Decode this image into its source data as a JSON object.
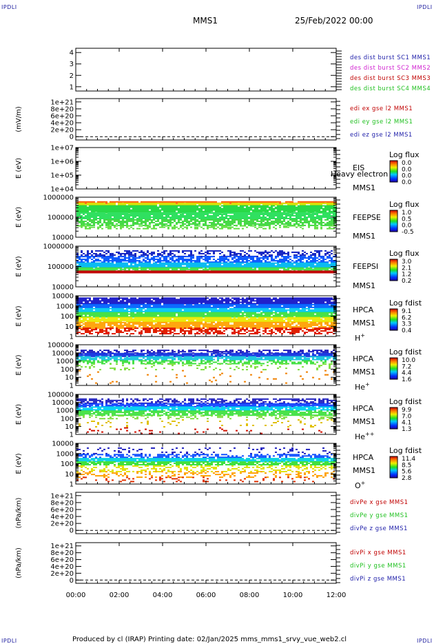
{
  "header": {
    "spacecraft": "MMS1",
    "datetime": "25/Feb/2022 00:00",
    "corner_mark": "IPDLI"
  },
  "footer": {
    "text": "Produced by cl (IRAP)   Printing date: 02/Jan/2025   mms_mms1_srvy_vue_web2.cl"
  },
  "colors": {
    "blue": "#1c1ca8",
    "magenta": "#d020d0",
    "red": "#c00000",
    "green": "#20c020"
  },
  "chart_data": [
    {
      "type": "line",
      "id": "burst",
      "ylabel": "",
      "yticks": [
        "4",
        "3",
        "2",
        "1"
      ],
      "legend": [
        {
          "text": "des dist burst SC1 MMS1",
          "color": "blue"
        },
        {
          "text": "des dist burst SC2 MMS2",
          "color": "magenta"
        },
        {
          "text": "des dist burst SC3 MMS3",
          "color": "red"
        },
        {
          "text": "des dist burst SC4 MMS4",
          "color": "green"
        }
      ]
    },
    {
      "type": "line",
      "id": "edi",
      "ylabel": "(mV/m)",
      "yticks": [
        "1e+21",
        "8e+20",
        "6e+20",
        "4e+20",
        "2e+20",
        "0"
      ],
      "zero_line": true,
      "legend": [
        {
          "text": "edi ex gse l2 MMS1",
          "color": "red"
        },
        {
          "text": "edi ey gse l2 MMS1",
          "color": "green"
        },
        {
          "text": "edi ez gse l2 MMS1",
          "color": "blue"
        }
      ]
    },
    {
      "type": "heatmap",
      "id": "eis",
      "ylabel": "E (eV)",
      "yticks": [
        "1e+07",
        "1e+06",
        "1e+05",
        "1e+04"
      ],
      "instrument": [
        "EIS",
        "MMS1"
      ],
      "overlay": "Heavy electron to",
      "scale_title": "Log flux",
      "scale_values": [
        "0.0",
        "0.0",
        "0.0",
        "0.0"
      ]
    },
    {
      "type": "heatmap",
      "id": "feepse",
      "ylabel": "E (eV)",
      "yticks": [
        "1000000",
        "100000",
        "10000"
      ],
      "instrument": [
        "FEEPSE",
        "MMS1"
      ],
      "scale_title": "Log flux",
      "scale_values": [
        "1.0",
        "0.5",
        "0.0",
        "-0.5"
      ]
    },
    {
      "type": "heatmap",
      "id": "feepsi",
      "ylabel": "E (eV)",
      "yticks": [
        "1000000",
        "100000",
        "10000"
      ],
      "instrument": [
        "FEEPSI",
        "MMS1"
      ],
      "scale_title": "Log flux",
      "scale_values": [
        "3.0",
        "2.1",
        "1.2",
        "0.2"
      ]
    },
    {
      "type": "heatmap",
      "id": "hpca_h",
      "ylabel": "E (eV)",
      "yticks": [
        "10000",
        "1000",
        "100",
        "10",
        "1"
      ],
      "instrument": [
        "HPCA",
        "MMS1"
      ],
      "species": {
        "base": "H",
        "sup": "+"
      },
      "scale_title": "Log fdist",
      "scale_values": [
        "9.1",
        "6.2",
        "3.3",
        "0.4"
      ]
    },
    {
      "type": "heatmap",
      "id": "hpca_he",
      "ylabel": "E (eV)",
      "yticks": [
        "100000",
        "10000",
        "1000",
        "100",
        "10",
        "1"
      ],
      "instrument": [
        "HPCA",
        "MMS1"
      ],
      "species": {
        "base": "He",
        "sup": "+"
      },
      "scale_title": "Log fdist",
      "scale_values": [
        "10.0",
        "7.2",
        "4.4",
        "1.6"
      ]
    },
    {
      "type": "heatmap",
      "id": "hpca_hepp",
      "ylabel": "E (eV)",
      "yticks": [
        "100000",
        "10000",
        "1000",
        "100",
        "10",
        "1"
      ],
      "instrument": [
        "HPCA",
        "MMS1"
      ],
      "species": {
        "base": "He",
        "sup": "++"
      },
      "scale_title": "Log fdist",
      "scale_values": [
        "9.9",
        "7.0",
        "4.1",
        "1.3"
      ]
    },
    {
      "type": "heatmap",
      "id": "hpca_o",
      "ylabel": "E (eV)",
      "yticks": [
        "10000",
        "1000",
        "100",
        "10",
        "1"
      ],
      "instrument": [
        "HPCA",
        "MMS1"
      ],
      "species": {
        "base": "O",
        "sup": "+"
      },
      "scale_title": "Log fdist",
      "scale_values": [
        "11.4",
        "8.5",
        "5.6",
        "2.8"
      ]
    },
    {
      "type": "line",
      "id": "divpe",
      "ylabel": "(nPa/km)",
      "yticks": [
        "1e+21",
        "8e+20",
        "6e+20",
        "4e+20",
        "2e+20",
        "0"
      ],
      "zero_line": true,
      "legend": [
        {
          "text": "divPe x gse MMS1",
          "color": "red"
        },
        {
          "text": "divPe y gse MMS1",
          "color": "green"
        },
        {
          "text": "divPe z gse MMS1",
          "color": "blue"
        }
      ]
    },
    {
      "type": "line",
      "id": "divpi",
      "ylabel": "(nPa/km)",
      "yticks": [
        "1e+21",
        "8e+20",
        "6e+20",
        "4e+20",
        "2e+20",
        "0"
      ],
      "zero_line": true,
      "legend": [
        {
          "text": "divPi x gse MMS1",
          "color": "red"
        },
        {
          "text": "divPi y gse MMS1",
          "color": "green"
        },
        {
          "text": "divPi z gse MMS1",
          "color": "blue"
        }
      ]
    }
  ],
  "xaxis": {
    "ticks": [
      "00:00",
      "02:00",
      "04:00",
      "06:00",
      "08:00",
      "10:00",
      "12:00"
    ]
  }
}
